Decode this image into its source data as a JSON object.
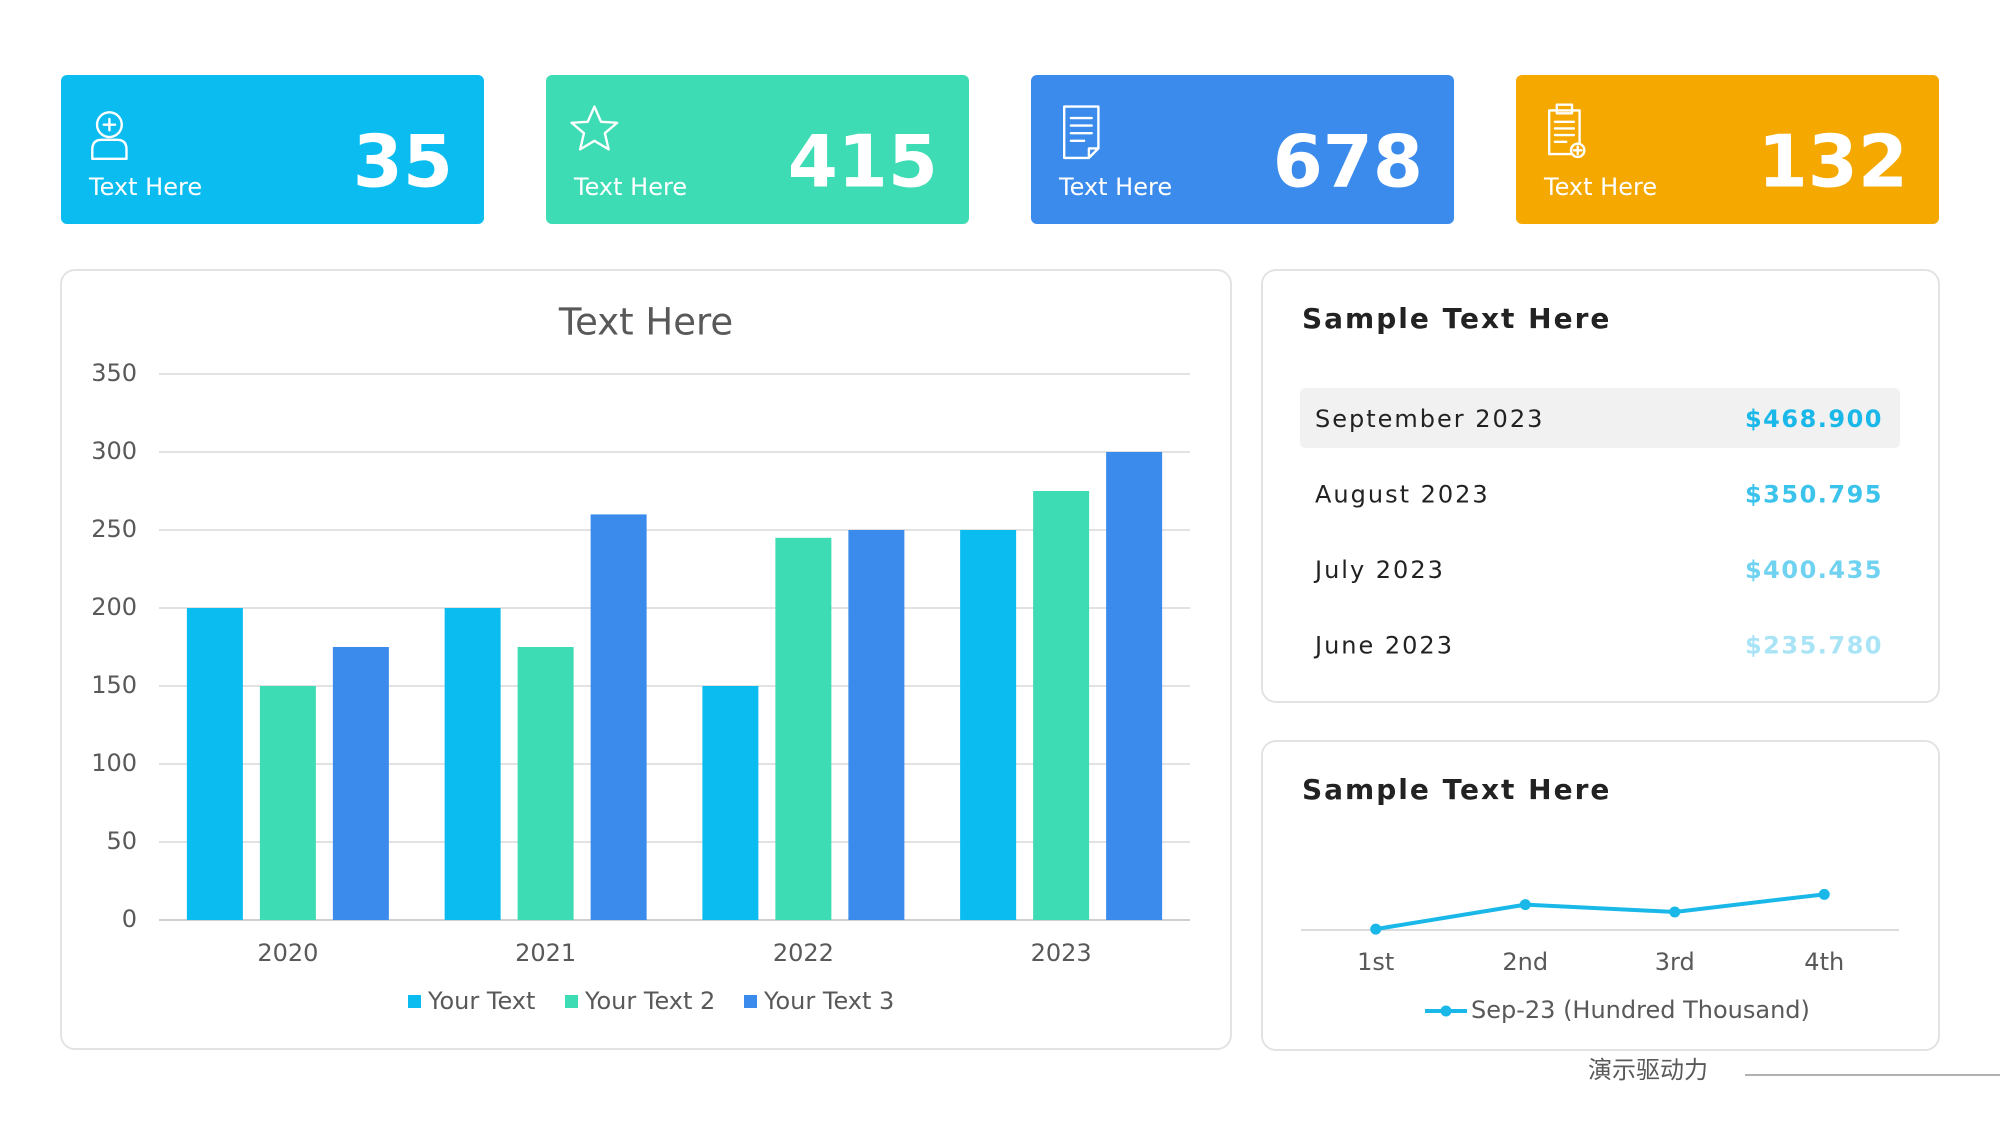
{
  "cards": [
    {
      "label": "Text Here",
      "value": 35,
      "color": "#0bbcf0"
    },
    {
      "label": "Text Here",
      "value": 415,
      "color": "#3ddcb4"
    },
    {
      "label": "Text Here",
      "value": 678,
      "color": "#3b8bec"
    },
    {
      "label": "Text Here",
      "value": 132,
      "color": "#f5a800"
    }
  ],
  "chart_data": [
    {
      "type": "bar",
      "title": "Text Here",
      "categories": [
        "2020",
        "2021",
        "2022",
        "2023"
      ],
      "series": [
        {
          "name": "Your Text",
          "color": "#0bbcf0",
          "values": [
            200,
            200,
            150,
            250
          ]
        },
        {
          "name": "Your Text 2",
          "color": "#3ddcb4",
          "values": [
            150,
            175,
            245,
            275
          ]
        },
        {
          "name": "Your Text 3",
          "color": "#3b8bec",
          "values": [
            175,
            260,
            250,
            300
          ]
        }
      ],
      "ylim": [
        0,
        350
      ],
      "yticks": [
        0,
        50,
        100,
        150,
        200,
        250,
        300,
        350
      ],
      "grid": true,
      "legend": "bottom"
    },
    {
      "type": "line",
      "title": "Sample Text Here",
      "categories": [
        "1st",
        "2nd",
        "3rd",
        "4th"
      ],
      "series": [
        {
          "name": "Sep-23 (Hundred Thousand)",
          "color": "#1ab8e8",
          "values": [
            2.36,
            4.0,
            3.51,
            4.69
          ]
        }
      ],
      "ylim": [
        2.3,
        9
      ],
      "legend": "bottom"
    }
  ],
  "table": {
    "title": "Sample Text Here",
    "rows": [
      [
        "September 2023",
        "$468.900"
      ],
      [
        "August 2023",
        "$350.795"
      ],
      [
        "July 2023",
        "$400.435"
      ],
      [
        "June 2023",
        "$235.780"
      ]
    ],
    "value_colors": [
      "#1ab8e8",
      "#3cc3ec",
      "#6fd2f1",
      "#a9e4f6"
    ]
  },
  "footer": "演示驱动力"
}
